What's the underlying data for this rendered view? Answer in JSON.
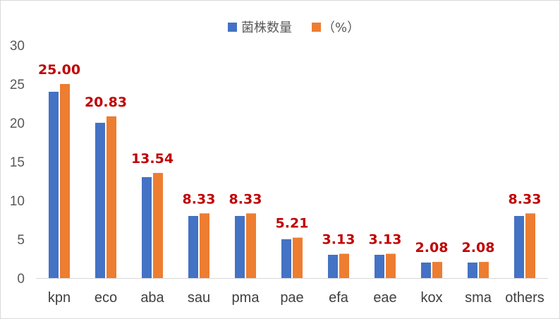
{
  "chart_data": {
    "type": "bar",
    "categories": [
      "kpn",
      "eco",
      "aba",
      "sau",
      "pma",
      "pae",
      "efa",
      "eae",
      "kox",
      "sma",
      "others"
    ],
    "series": [
      {
        "name": "菌株数量",
        "color": "#4472c4",
        "values": [
          24,
          20,
          13,
          8,
          8,
          5,
          3,
          3,
          2,
          2,
          8
        ]
      },
      {
        "name": "（%）",
        "color": "#ed7d31",
        "values": [
          25.0,
          20.83,
          13.54,
          8.33,
          8.33,
          5.21,
          3.13,
          3.13,
          2.08,
          2.08,
          8.33
        ]
      }
    ],
    "data_labels": [
      "25.00",
      "20.83",
      "13.54",
      "8.33",
      "8.33",
      "5.21",
      "3.13",
      "3.13",
      "2.08",
      "2.08",
      "8.33"
    ],
    "y_ticks": [
      "0",
      "5",
      "10",
      "15",
      "20",
      "25",
      "30"
    ],
    "ylim": [
      0,
      30
    ],
    "legend_position": "top-center",
    "grid": false,
    "label_color": "#c00000"
  }
}
